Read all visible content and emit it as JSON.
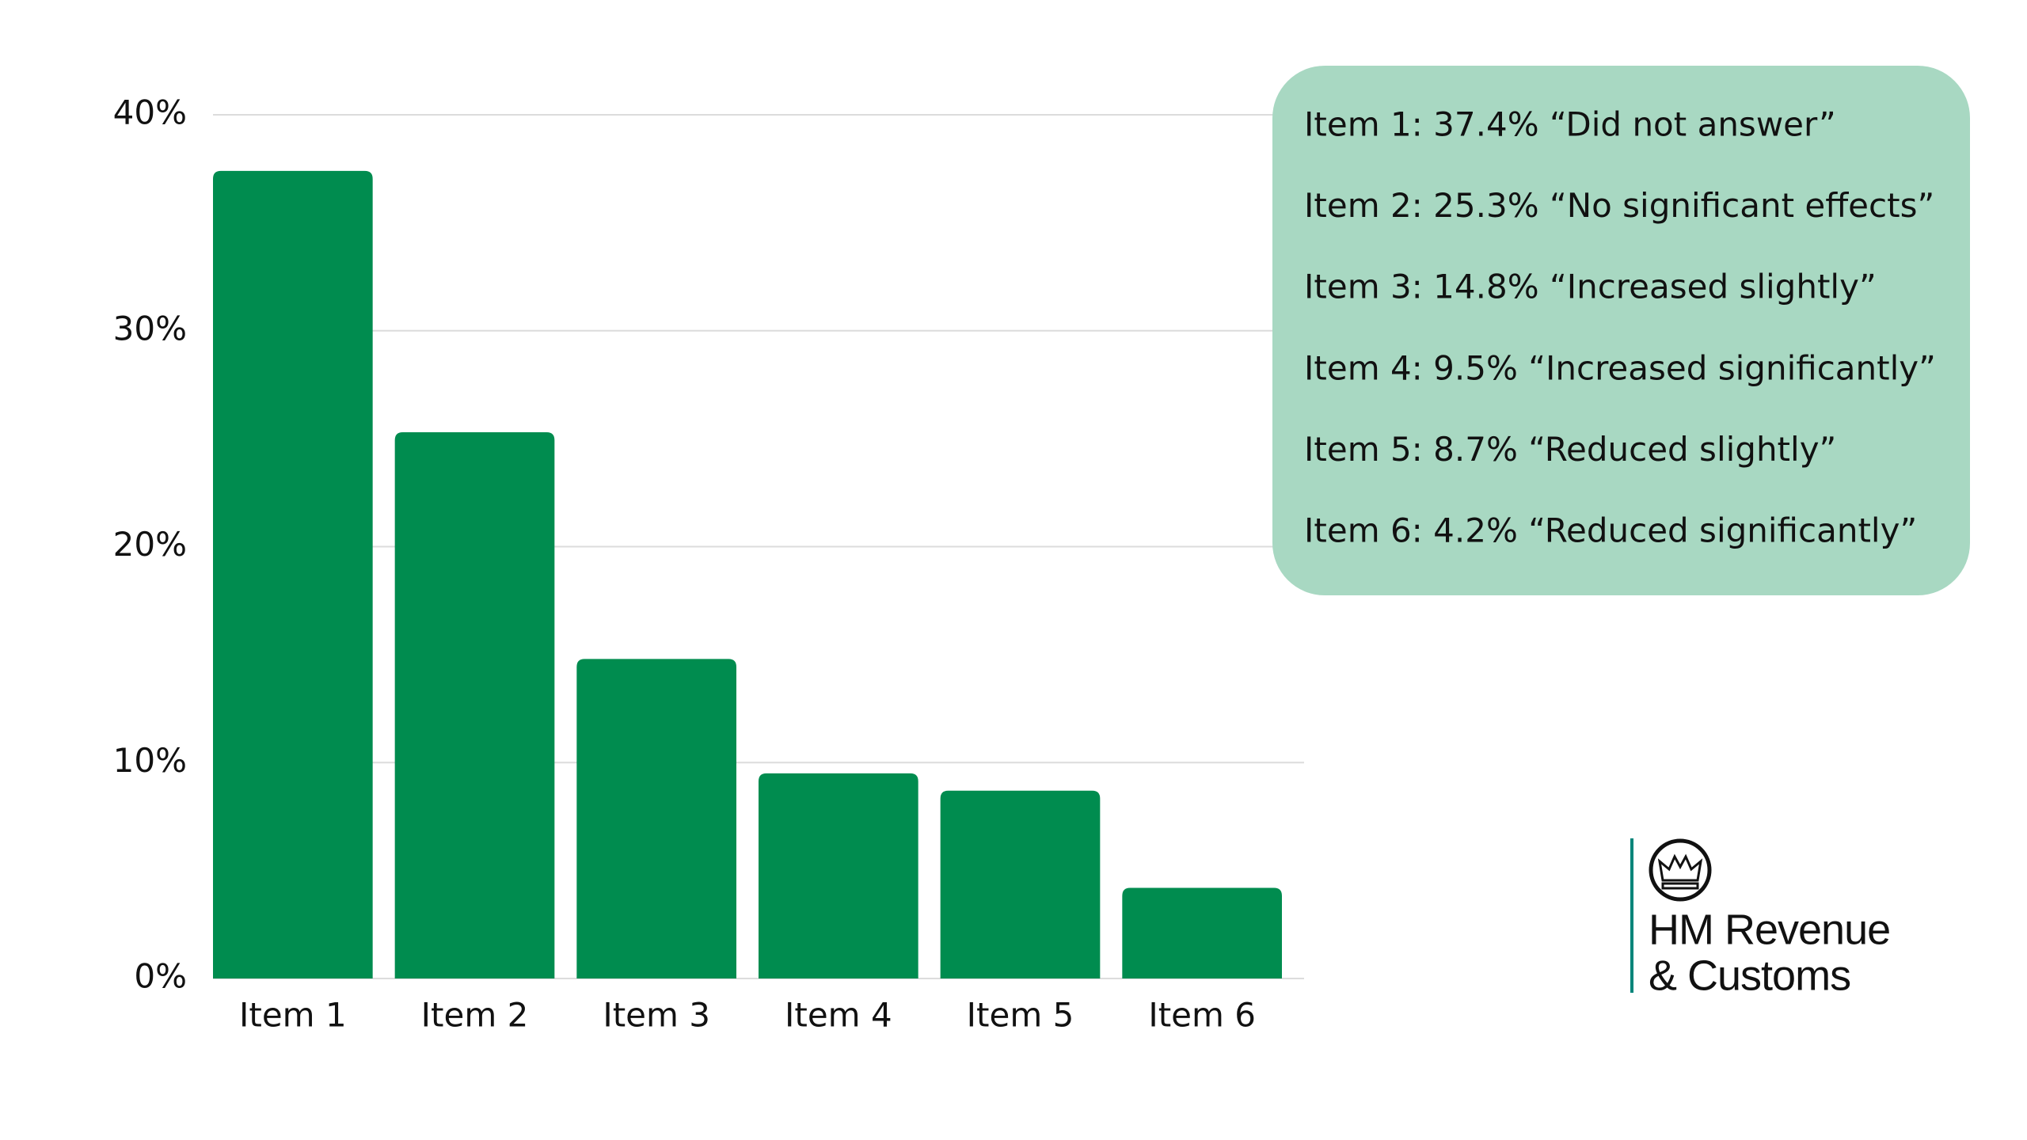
{
  "chart_data": {
    "type": "bar",
    "categories": [
      "Item 1",
      "Item 2",
      "Item 3",
      "Item 4",
      "Item 5",
      "Item 6"
    ],
    "values": [
      37.4,
      25.3,
      14.8,
      9.5,
      8.7,
      4.2
    ],
    "color": "#008c4f",
    "ylim": [
      0,
      40
    ],
    "yticks": [
      {
        "value": 0,
        "label": "0%"
      },
      {
        "value": 10,
        "label": "10%"
      },
      {
        "value": 20,
        "label": "20%"
      },
      {
        "value": 30,
        "label": "30%"
      },
      {
        "value": 40,
        "label": "40%"
      }
    ],
    "grid": true,
    "annotations": [
      "Item 1: 37.4% “Did not answer”",
      "Item 2: 25.3% “No significant effects”",
      "Item 3: 14.8% “Increased slightly”",
      "Item 4: 9.5% “Increased significantly”",
      "Item 5: 8.7% “Reduced slightly”",
      "Item 6: 4.2% “Reduced significantly”"
    ]
  },
  "logo": {
    "lines": [
      "HM Revenue",
      "& Customs"
    ]
  }
}
